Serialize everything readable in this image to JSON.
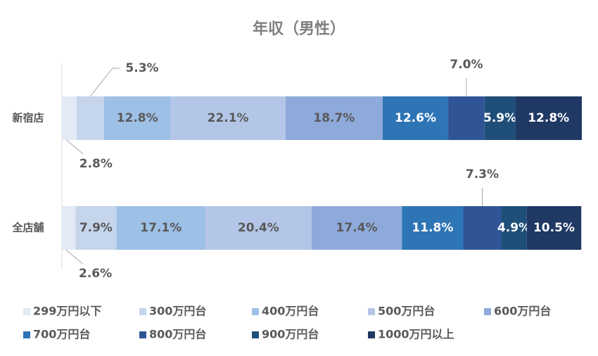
{
  "chart_data": {
    "type": "stacked-bar-horizontal",
    "title": "年収（男性）",
    "categories": [
      "新宿店",
      "全店舗"
    ],
    "xlim": [
      0,
      100
    ],
    "legend": "bottom",
    "series": [
      {
        "name": "299万円以下",
        "color": "#e3e9f5",
        "values": [
          2.8,
          2.6
        ],
        "value_labels": [
          "2.8%",
          "2.6%"
        ]
      },
      {
        "name": "300万円台",
        "color": "#c5d5ec",
        "values": [
          5.3,
          7.9
        ],
        "value_labels": [
          "5.3%",
          "7.9%"
        ]
      },
      {
        "name": "400万円台",
        "color": "#9dc0e6",
        "values": [
          12.8,
          17.1
        ],
        "value_labels": [
          "12.8%",
          "17.1%"
        ]
      },
      {
        "name": "500万円台",
        "color": "#b4c6e7",
        "values": [
          22.1,
          20.4
        ],
        "value_labels": [
          "22.1%",
          "20.4%"
        ]
      },
      {
        "name": "600万円台",
        "color": "#8eaadb",
        "values": [
          18.7,
          17.4
        ],
        "value_labels": [
          "18.7%",
          "17.4%"
        ]
      },
      {
        "name": "700万円台",
        "color": "#2e75b6",
        "values": [
          12.6,
          11.8
        ],
        "value_labels": [
          "12.6%",
          "11.8%"
        ]
      },
      {
        "name": "800万円台",
        "color": "#2f5597",
        "values": [
          7.0,
          7.3
        ],
        "value_labels": [
          "7.0%",
          "7.3%"
        ]
      },
      {
        "name": "900万円台",
        "color": "#1f4e79",
        "values": [
          5.9,
          4.9
        ],
        "value_labels": [
          "5.9%",
          "4.9%"
        ]
      },
      {
        "name": "1000万円以上",
        "color": "#1f3864",
        "values": [
          12.8,
          10.5
        ],
        "value_labels": [
          "12.8%",
          "10.5%"
        ]
      }
    ]
  }
}
